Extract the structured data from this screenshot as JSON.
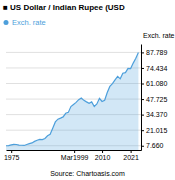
{
  "chart_data": {
    "type": "area",
    "title": "■ US Dollar / Indian Rupee (USD",
    "y_label": "Exch. rate",
    "source": "Source: Chartoasis.com",
    "legend": "top-left",
    "grid": true,
    "xlim": [
      1973,
      2025
    ],
    "xticks": [
      1975,
      {
        "value": 1999.25,
        "label": "Mar1999"
      },
      2010,
      2021
    ],
    "ylim": [
      4.0,
      95.0
    ],
    "yticks": [
      {
        "value": 7.66,
        "label": "7.660"
      },
      21.015,
      {
        "value": 34.37,
        "label": "34.370"
      },
      47.725,
      {
        "value": 61.08,
        "label": "61.080"
      },
      74.434,
      87.789
    ],
    "x": [
      1973,
      1974,
      1975,
      1976,
      1977,
      1978,
      1979,
      1980,
      1981,
      1982,
      1983,
      1984,
      1985,
      1986,
      1987,
      1988,
      1989,
      1990,
      1991,
      1992,
      1993,
      1994,
      1995,
      1996,
      1997,
      1998,
      1999,
      2000,
      2001,
      2002,
      2003,
      2004,
      2005,
      2006,
      2007,
      2008,
      2009,
      2010,
      2011,
      2012,
      2013,
      2014,
      2015,
      2016,
      2017,
      2018,
      2019,
      2020,
      2021,
      2022,
      2023,
      2024
    ],
    "series": [
      {
        "name": "Exch. rate",
        "color": "#4d9fdb",
        "values": [
          7.66,
          7.8,
          8.4,
          8.9,
          8.7,
          8.2,
          8.1,
          7.9,
          8.7,
          9.5,
          10.1,
          11.4,
          12.4,
          13.1,
          12.9,
          13.9,
          16.2,
          17.5,
          22.7,
          28.1,
          30.5,
          31.4,
          32.4,
          35.5,
          36.3,
          41.3,
          43.1,
          44.9,
          47.2,
          48.6,
          46.6,
          45.3,
          44.1,
          45.3,
          41.4,
          43.5,
          48.4,
          45.7,
          46.7,
          53.4,
          58.6,
          61.0,
          64.2,
          67.2,
          65.1,
          69.9,
          70.4,
          74.1,
          73.9,
          78.6,
          82.7,
          87.8
        ]
      }
    ]
  }
}
